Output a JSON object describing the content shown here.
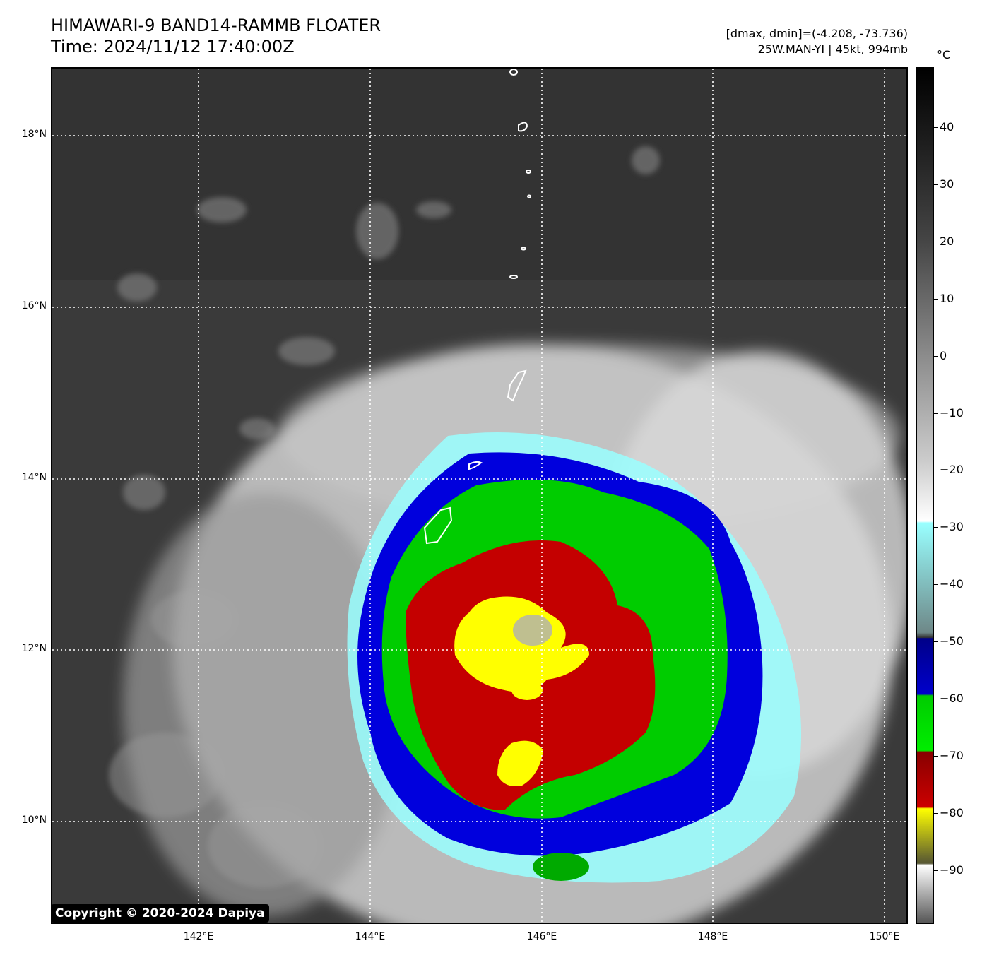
{
  "header": {
    "title_line1": "HIMAWARI-9 BAND14-RAMMB FLOATER",
    "title_line2": "Time: 2024/11/12 17:40:00Z",
    "info_line1": "[dmax, dmin]=(-4.208, -73.736)",
    "info_line2": "25W.MAN-YI | 45kt, 994mb"
  },
  "map": {
    "lat_labels": [
      "18°N",
      "16°N",
      "14°N",
      "12°N",
      "10°N"
    ],
    "lon_labels": [
      "142°E",
      "144°E",
      "146°E",
      "148°E",
      "150°E"
    ]
  },
  "colorbar": {
    "unit": "°C",
    "ticks": [
      "40",
      "30",
      "20",
      "10",
      "0",
      "−10",
      "−20",
      "−30",
      "−40",
      "−50",
      "−60",
      "−70",
      "−80",
      "−90"
    ],
    "colors": {
      "blue": "#0000cc",
      "green": "#00cc00",
      "red": "#cc0000",
      "yellow": "#ffff00",
      "cyan": "#99ffff",
      "cloud_gray": "#bfbfbf",
      "background_gray": "#3a3a3a"
    }
  },
  "footer": {
    "copyright": "Copyright © 2020-2024 Dapiya"
  }
}
